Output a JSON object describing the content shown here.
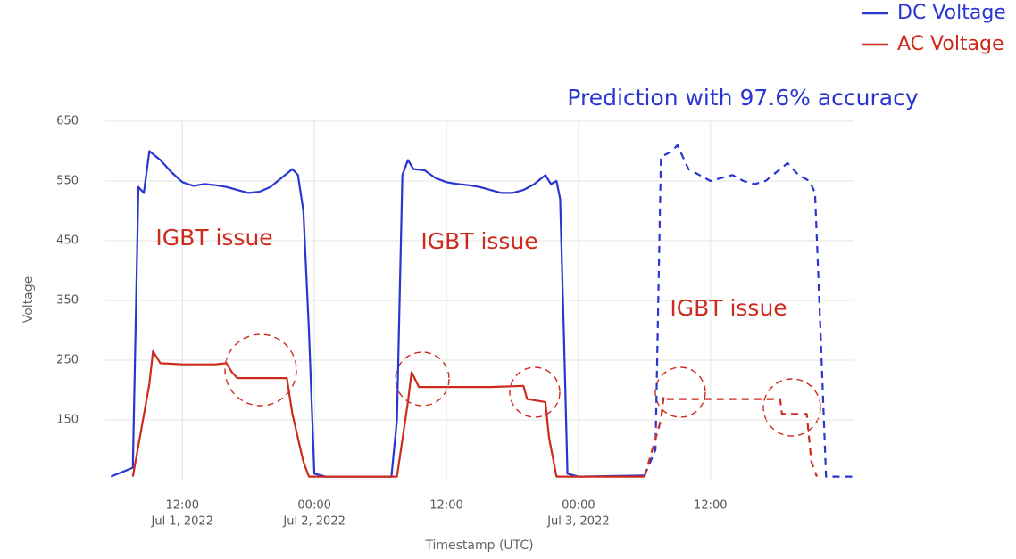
{
  "chart_data": {
    "type": "line",
    "subtitle": "Prediction with 97.6% accuracy",
    "xlabel": "Timestamp (UTC)",
    "ylabel": "Voltage",
    "annotations": [
      "IGBT issue",
      "IGBT issue",
      "IGBT issue"
    ],
    "forecast_start": "2022-07-03 06:00",
    "xlim": [
      "2022-07-01 05:00",
      "2022-07-04 01:00"
    ],
    "xticks": [
      {
        "value": "2022-07-01 12:00",
        "label": "12:00",
        "date": "Jul 1, 2022"
      },
      {
        "value": "2022-07-02 00:00",
        "label": "00:00",
        "date": "Jul 2, 2022"
      },
      {
        "value": "2022-07-02 12:00",
        "label": "12:00"
      },
      {
        "value": "2022-07-03 00:00",
        "label": "00:00",
        "date": "Jul 3, 2022"
      },
      {
        "value": "2022-07-03 12:00",
        "label": "12:00"
      }
    ],
    "ylim": [
      50,
      650
    ],
    "yticks": [
      150,
      250,
      350,
      450,
      550,
      650
    ],
    "grid": true,
    "legend": "top-right",
    "series": [
      {
        "name": "DC Voltage",
        "color": "#2a36d0",
        "x": [
          "2022-07-01 05:30",
          "2022-07-01 07:30",
          "2022-07-01 08:00",
          "2022-07-01 08:30",
          "2022-07-01 09:00",
          "2022-07-01 10:00",
          "2022-07-01 11:00",
          "2022-07-01 12:00",
          "2022-07-01 13:00",
          "2022-07-01 14:00",
          "2022-07-01 15:00",
          "2022-07-01 16:00",
          "2022-07-01 17:00",
          "2022-07-01 18:00",
          "2022-07-01 19:00",
          "2022-07-01 20:00",
          "2022-07-01 21:00",
          "2022-07-01 22:00",
          "2022-07-01 22:30",
          "2022-07-01 23:00",
          "2022-07-01 23:30",
          "2022-07-02 00:00",
          "2022-07-02 01:00",
          "2022-07-02 07:00",
          "2022-07-02 07:30",
          "2022-07-02 08:00",
          "2022-07-02 08:30",
          "2022-07-02 09:00",
          "2022-07-02 10:00",
          "2022-07-02 11:00",
          "2022-07-02 12:00",
          "2022-07-02 13:00",
          "2022-07-02 14:00",
          "2022-07-02 15:00",
          "2022-07-02 16:00",
          "2022-07-02 17:00",
          "2022-07-02 18:00",
          "2022-07-02 19:00",
          "2022-07-02 20:00",
          "2022-07-02 21:00",
          "2022-07-02 21:30",
          "2022-07-02 22:00",
          "2022-07-02 22:20",
          "2022-07-02 22:40",
          "2022-07-02 23:00",
          "2022-07-03 00:00",
          "2022-07-03 06:00",
          "2022-07-03 07:00",
          "2022-07-03 07:30",
          "2022-07-03 08:30",
          "2022-07-03 09:00",
          "2022-07-03 10:00",
          "2022-07-03 11:00",
          "2022-07-03 12:00",
          "2022-07-03 13:00",
          "2022-07-03 14:00",
          "2022-07-03 15:00",
          "2022-07-03 16:00",
          "2022-07-03 17:00",
          "2022-07-03 18:00",
          "2022-07-03 19:00",
          "2022-07-03 20:00",
          "2022-07-03 21:00",
          "2022-07-03 21:30",
          "2022-07-03 22:00",
          "2022-07-03 22:30",
          "2022-07-04 01:00"
        ],
        "values": [
          55,
          70,
          540,
          530,
          600,
          585,
          565,
          548,
          542,
          545,
          543,
          540,
          535,
          530,
          532,
          540,
          555,
          570,
          560,
          500,
          300,
          60,
          55,
          55,
          150,
          560,
          585,
          570,
          568,
          555,
          548,
          545,
          543,
          540,
          535,
          530,
          530,
          535,
          545,
          560,
          545,
          550,
          520,
          300,
          60,
          55,
          57,
          100,
          590,
          600,
          610,
          570,
          560,
          550,
          555,
          560,
          550,
          545,
          550,
          565,
          580,
          560,
          550,
          530,
          300,
          55,
          55
        ]
      },
      {
        "name": "AC Voltage",
        "color": "#cc2b1d",
        "x": [
          "2022-07-01 07:30",
          "2022-07-01 09:00",
          "2022-07-01 09:20",
          "2022-07-01 10:00",
          "2022-07-01 12:00",
          "2022-07-01 15:00",
          "2022-07-01 16:00",
          "2022-07-01 16:30",
          "2022-07-01 17:00",
          "2022-07-01 21:30",
          "2022-07-01 22:00",
          "2022-07-01 23:00",
          "2022-07-01 23:30",
          "2022-07-02 07:30",
          "2022-07-02 08:30",
          "2022-07-02 08:50",
          "2022-07-02 09:30",
          "2022-07-02 16:00",
          "2022-07-02 19:00",
          "2022-07-02 19:20",
          "2022-07-02 21:00",
          "2022-07-02 21:20",
          "2022-07-02 22:00",
          "2022-07-03 06:00",
          "2022-07-03 07:30",
          "2022-07-03 07:45",
          "2022-07-03 08:00",
          "2022-07-03 18:20",
          "2022-07-03 18:30",
          "2022-07-03 20:45",
          "2022-07-03 21:10",
          "2022-07-03 21:40"
        ],
        "values": [
          55,
          210,
          265,
          245,
          243,
          243,
          245,
          230,
          220,
          220,
          160,
          80,
          55,
          55,
          180,
          230,
          205,
          205,
          207,
          185,
          180,
          120,
          55,
          55,
          150,
          190,
          185,
          185,
          160,
          160,
          80,
          55
        ]
      }
    ]
  }
}
